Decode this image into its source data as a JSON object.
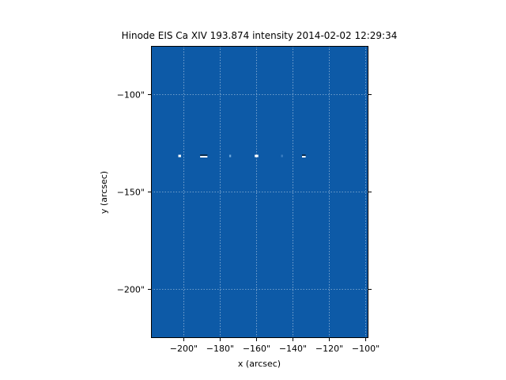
{
  "chart_data": {
    "type": "heatmap",
    "title": "Hinode EIS Ca XIV 193.874 intensity 2014-02-02 12:29:34",
    "xlabel": "x (arcsec)",
    "ylabel": "y (arcsec)",
    "xlim": [
      -218,
      -98.5
    ],
    "ylim": [
      -225,
      -75
    ],
    "x_ticks": [
      -200,
      -180,
      -160,
      -140,
      -120,
      -100
    ],
    "x_tick_labels": [
      "−200\"",
      "−180\"",
      "−160\"",
      "−140\"",
      "−120\"",
      "−100\""
    ],
    "y_ticks": [
      -100,
      -150,
      -200
    ],
    "y_tick_labels": [
      "−100\"",
      "−150\"",
      "−200\""
    ],
    "grid": true,
    "background_color": "#0d5aa7",
    "features": [
      {
        "x": [
          -203,
          -201.5
        ],
        "y": -131.5,
        "colors": [
          "#ffffff"
        ]
      },
      {
        "x": [
          -191,
          -187
        ],
        "y": -131.5,
        "colors": [
          "#0b2d4f",
          "#ffffff"
        ]
      },
      {
        "x": [
          -175,
          -174
        ],
        "y": -131.5,
        "colors": [
          "#6fa8dc"
        ]
      },
      {
        "x": [
          -161,
          -159
        ],
        "y": -131.5,
        "colors": [
          "#ffffff"
        ]
      },
      {
        "x": [
          -146.5,
          -145.5
        ],
        "y": -131.5,
        "colors": [
          "#3d7fc2"
        ]
      },
      {
        "x": [
          -135,
          -133
        ],
        "y": -131.5,
        "colors": [
          "#0b2d4f",
          "#ffffff"
        ]
      }
    ]
  }
}
